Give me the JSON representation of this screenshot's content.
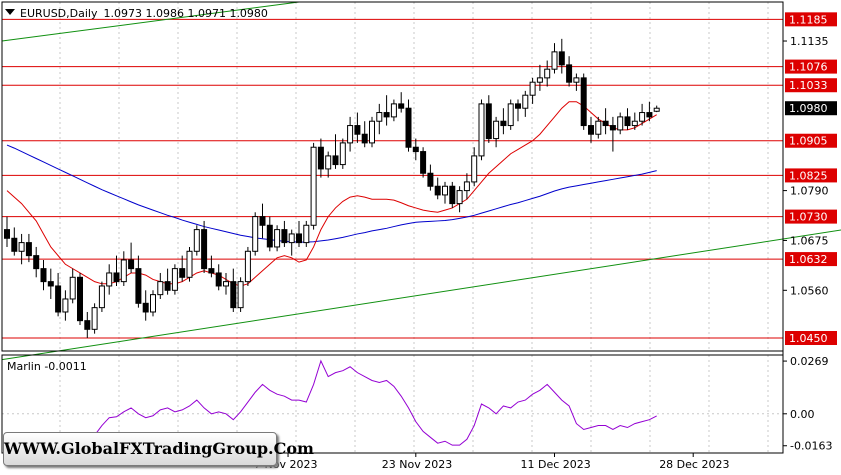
{
  "header": {
    "title": "EURUSD,Daily",
    "ohlc": "1.0973 1.0986 1.0971 1.0980"
  },
  "indicator": {
    "label": "Marlin -0.0011"
  },
  "watermark": "WWW.GlobalFXTradingGroup.Com",
  "colors": {
    "level_line": "#dd0000",
    "channel_line": "#109010",
    "ma_fast": "#dd0000",
    "ma_slow": "#0000cc",
    "oscillator": "#9400d3",
    "candle": "#000000"
  },
  "chart_data": [
    {
      "type": "candlestick",
      "symbol": "EURUSD",
      "timeframe": "Daily",
      "ylim": [
        1.042,
        1.1225
      ],
      "y_ticks": [
        "1.1135",
        "1.0980",
        "1.0790",
        "1.0675",
        "1.0560"
      ],
      "x_ticks": [
        "7 Nov 2023",
        "23 Nov 2023",
        "11 Dec 2023",
        "28 Dec 2023"
      ],
      "levels": [
        {
          "label": "1.1185",
          "value": 1.1185
        },
        {
          "label": "1.1076",
          "value": 1.1076
        },
        {
          "label": "1.1033",
          "value": 1.1033
        },
        {
          "label": "1.0905",
          "value": 1.0905
        },
        {
          "label": "1.0825",
          "value": 1.0825
        },
        {
          "label": "1.0730",
          "value": 1.073
        },
        {
          "label": "1.0632",
          "value": 1.0632
        },
        {
          "label": "1.0450",
          "value": 1.045
        }
      ],
      "current_price": "1.0980",
      "candles": [
        [
          1.07,
          1.073,
          1.066,
          1.068
        ],
        [
          1.068,
          1.0705,
          1.064,
          1.065
        ],
        [
          1.065,
          1.069,
          1.062,
          1.067
        ],
        [
          1.067,
          1.069,
          1.0625,
          1.064
        ],
        [
          1.064,
          1.066,
          1.059,
          1.061
        ],
        [
          1.061,
          1.063,
          1.056,
          1.058
        ],
        [
          1.058,
          1.061,
          1.054,
          1.057
        ],
        [
          1.057,
          1.06,
          1.05,
          1.051
        ],
        [
          1.051,
          1.056,
          1.049,
          1.054
        ],
        [
          1.054,
          1.061,
          1.053,
          1.059
        ],
        [
          1.059,
          1.06,
          1.048,
          1.049
        ],
        [
          1.049,
          1.051,
          1.045,
          1.047
        ],
        [
          1.047,
          1.053,
          1.046,
          1.052
        ],
        [
          1.052,
          1.058,
          1.051,
          1.057
        ],
        [
          1.057,
          1.062,
          1.055,
          1.06
        ],
        [
          1.06,
          1.064,
          1.057,
          1.058
        ],
        [
          1.058,
          1.065,
          1.057,
          1.063
        ],
        [
          1.063,
          1.067,
          1.06,
          1.061
        ],
        [
          1.061,
          1.064,
          1.052,
          1.053
        ],
        [
          1.053,
          1.056,
          1.049,
          1.051
        ],
        [
          1.051,
          1.056,
          1.05,
          1.055
        ],
        [
          1.055,
          1.06,
          1.054,
          1.058
        ],
        [
          1.058,
          1.061,
          1.055,
          1.056
        ],
        [
          1.056,
          1.062,
          1.055,
          1.061
        ],
        [
          1.061,
          1.064,
          1.058,
          1.059
        ],
        [
          1.059,
          1.066,
          1.058,
          1.065
        ],
        [
          1.065,
          1.071,
          1.064,
          1.07
        ],
        [
          1.07,
          1.072,
          1.06,
          1.061
        ],
        [
          1.061,
          1.064,
          1.059,
          1.06
        ],
        [
          1.06,
          1.062,
          1.056,
          1.057
        ],
        [
          1.057,
          1.06,
          1.055,
          1.058
        ],
        [
          1.058,
          1.061,
          1.051,
          1.052
        ],
        [
          1.052,
          1.059,
          1.051,
          1.058
        ],
        [
          1.058,
          1.066,
          1.057,
          1.065
        ],
        [
          1.065,
          1.074,
          1.064,
          1.073
        ],
        [
          1.073,
          1.076,
          1.068,
          1.071
        ],
        [
          1.071,
          1.073,
          1.065,
          1.066
        ],
        [
          1.066,
          1.071,
          1.065,
          1.07
        ],
        [
          1.07,
          1.072,
          1.066,
          1.067
        ],
        [
          1.067,
          1.07,
          1.064,
          1.069
        ],
        [
          1.069,
          1.072,
          1.066,
          1.067
        ],
        [
          1.067,
          1.072,
          1.066,
          1.071
        ],
        [
          1.071,
          1.09,
          1.07,
          1.089
        ],
        [
          1.089,
          1.091,
          1.082,
          1.084
        ],
        [
          1.084,
          1.088,
          1.082,
          1.087
        ],
        [
          1.087,
          1.092,
          1.084,
          1.085
        ],
        [
          1.085,
          1.091,
          1.084,
          1.09
        ],
        [
          1.09,
          1.096,
          1.088,
          1.094
        ],
        [
          1.094,
          1.097,
          1.09,
          1.092
        ],
        [
          1.092,
          1.095,
          1.089,
          1.09
        ],
        [
          1.09,
          1.096,
          1.089,
          1.095
        ],
        [
          1.095,
          1.099,
          1.092,
          1.097
        ],
        [
          1.097,
          1.101,
          1.094,
          1.096
        ],
        [
          1.096,
          1.1,
          1.095,
          1.099
        ],
        [
          1.099,
          1.1017,
          1.097,
          1.098
        ],
        [
          1.098,
          1.1,
          1.088,
          1.089
        ],
        [
          1.089,
          1.091,
          1.086,
          1.088
        ],
        [
          1.088,
          1.089,
          1.082,
          1.083
        ],
        [
          1.083,
          1.085,
          1.079,
          1.08
        ],
        [
          1.08,
          1.082,
          1.077,
          1.078
        ],
        [
          1.078,
          1.081,
          1.076,
          1.08
        ],
        [
          1.08,
          1.081,
          1.075,
          1.076
        ],
        [
          1.076,
          1.08,
          1.074,
          1.079
        ],
        [
          1.079,
          1.083,
          1.077,
          1.081
        ],
        [
          1.081,
          1.089,
          1.08,
          1.087
        ],
        [
          1.087,
          1.1,
          1.086,
          1.099
        ],
        [
          1.099,
          1.101,
          1.09,
          1.091
        ],
        [
          1.091,
          1.096,
          1.089,
          1.095
        ],
        [
          1.095,
          1.098,
          1.092,
          1.094
        ],
        [
          1.094,
          1.1,
          1.093,
          1.099
        ],
        [
          1.099,
          1.1,
          1.095,
          1.098
        ],
        [
          1.098,
          1.102,
          1.096,
          1.101
        ],
        [
          1.101,
          1.105,
          1.099,
          1.104
        ],
        [
          1.104,
          1.108,
          1.102,
          1.105
        ],
        [
          1.105,
          1.109,
          1.103,
          1.107
        ],
        [
          1.107,
          1.113,
          1.106,
          1.111
        ],
        [
          1.111,
          1.114,
          1.106,
          1.108
        ],
        [
          1.108,
          1.11,
          1.103,
          1.104
        ],
        [
          1.104,
          1.106,
          1.102,
          1.105
        ],
        [
          1.105,
          1.106,
          1.093,
          1.094
        ],
        [
          1.094,
          1.096,
          1.09,
          1.092
        ],
        [
          1.092,
          1.096,
          1.091,
          1.095
        ],
        [
          1.095,
          1.098,
          1.092,
          1.094
        ],
        [
          1.094,
          1.096,
          1.088,
          1.093
        ],
        [
          1.093,
          1.097,
          1.092,
          1.096
        ],
        [
          1.096,
          1.098,
          1.093,
          1.094
        ],
        [
          1.094,
          1.097,
          1.093,
          1.095
        ],
        [
          1.095,
          1.099,
          1.094,
          1.097
        ],
        [
          1.097,
          1.0995,
          1.095,
          1.096
        ],
        [
          1.0973,
          1.0986,
          1.0971,
          1.098
        ]
      ],
      "ma_fast": [
        1.079,
        1.0775,
        1.076,
        1.074,
        1.072,
        1.069,
        1.066,
        1.064,
        1.062,
        1.061,
        1.06,
        1.059,
        1.058,
        1.0575,
        1.0575,
        1.058,
        1.059,
        1.06,
        1.06,
        1.0595,
        1.0585,
        1.058,
        1.0575,
        1.0575,
        1.058,
        1.059,
        1.06,
        1.0605,
        1.06,
        1.0595,
        1.0585,
        1.0575,
        1.057,
        1.0575,
        1.059,
        1.0605,
        1.062,
        1.0635,
        1.064,
        1.0635,
        1.0625,
        1.063,
        1.066,
        1.07,
        1.073,
        1.075,
        1.0765,
        1.0775,
        1.0778,
        1.0775,
        1.077,
        1.077,
        1.077,
        1.0768,
        1.0762,
        1.0755,
        1.075,
        1.0745,
        1.0742,
        1.074,
        1.0745,
        1.075,
        1.076,
        1.077,
        1.079,
        1.081,
        1.083,
        1.0845,
        1.086,
        1.0875,
        1.0885,
        1.0895,
        1.0905,
        1.092,
        1.094,
        1.096,
        1.098,
        1.0995,
        1.0995,
        1.0985,
        1.097,
        1.0955,
        1.0945,
        1.0935,
        1.093,
        1.093,
        1.0935,
        1.0945,
        1.0955,
        1.0965
      ],
      "ma_slow": [
        1.0895,
        1.0888,
        1.088,
        1.0872,
        1.0864,
        1.0856,
        1.0848,
        1.084,
        1.0832,
        1.0824,
        1.0816,
        1.0808,
        1.08,
        1.0792,
        1.0785,
        1.0778,
        1.0771,
        1.0764,
        1.0757,
        1.0751,
        1.0745,
        1.0739,
        1.0733,
        1.0728,
        1.0722,
        1.0717,
        1.0712,
        1.0707,
        1.0703,
        1.0699,
        1.0695,
        1.0691,
        1.0687,
        1.0684,
        1.0681,
        1.0679,
        1.0677,
        1.0675,
        1.0673,
        1.0672,
        1.0671,
        1.0671,
        1.0672,
        1.0674,
        1.0676,
        1.0679,
        1.0682,
        1.0686,
        1.069,
        1.0693,
        1.0697,
        1.07,
        1.0703,
        1.0707,
        1.0711,
        1.0714,
        1.0717,
        1.0718,
        1.0719,
        1.072,
        1.0721,
        1.0723,
        1.0726,
        1.0729,
        1.0733,
        1.0738,
        1.0743,
        1.0748,
        1.0753,
        1.0758,
        1.0762,
        1.0767,
        1.0772,
        1.0777,
        1.0783,
        1.0789,
        1.0794,
        1.0798,
        1.0801,
        1.0804,
        1.0807,
        1.081,
        1.0813,
        1.0816,
        1.0819,
        1.0822,
        1.0825,
        1.0828,
        1.0832,
        1.0836
      ],
      "channel_upper": {
        "from": [
          0,
          1.1135
        ],
        "to": [
          40,
          1.1225
        ]
      },
      "channel_lower": {
        "from": [
          0,
          1.04
        ],
        "to": [
          130,
          1.074
        ]
      }
    },
    {
      "type": "line",
      "name": "Marlin",
      "y_ticks": [
        "0.0269",
        "0.00",
        "-0.0163"
      ],
      "ylim": [
        -0.02,
        0.03
      ],
      "values": [
        -0.011,
        -0.012,
        -0.014,
        -0.015,
        -0.014,
        -0.015,
        -0.017,
        -0.015,
        -0.015,
        -0.01,
        -0.013,
        -0.014,
        -0.011,
        -0.006,
        -0.002,
        -0.0015,
        0.001,
        0.003,
        0.0,
        -0.002,
        -0.001,
        0.002,
        0.003,
        0.001,
        0.002,
        0.004,
        0.007,
        0.003,
        0.0,
        0.001,
        0.0,
        -0.003,
        0.001,
        0.006,
        0.011,
        0.015,
        0.012,
        0.01,
        0.009,
        0.007,
        0.007,
        0.006,
        0.015,
        0.027,
        0.019,
        0.021,
        0.022,
        0.024,
        0.021,
        0.019,
        0.017,
        0.016,
        0.017,
        0.014,
        0.009,
        0.003,
        -0.004,
        -0.009,
        -0.012,
        -0.015,
        -0.014,
        -0.016,
        -0.016,
        -0.013,
        -0.006,
        0.005,
        0.003,
        0.0,
        0.004,
        0.003,
        0.006,
        0.007,
        0.01,
        0.012,
        0.015,
        0.011,
        0.007,
        0.004,
        -0.005,
        -0.008,
        -0.007,
        -0.006,
        -0.006,
        -0.008,
        -0.006,
        -0.007,
        -0.005,
        -0.004,
        -0.003,
        -0.0011
      ]
    }
  ]
}
